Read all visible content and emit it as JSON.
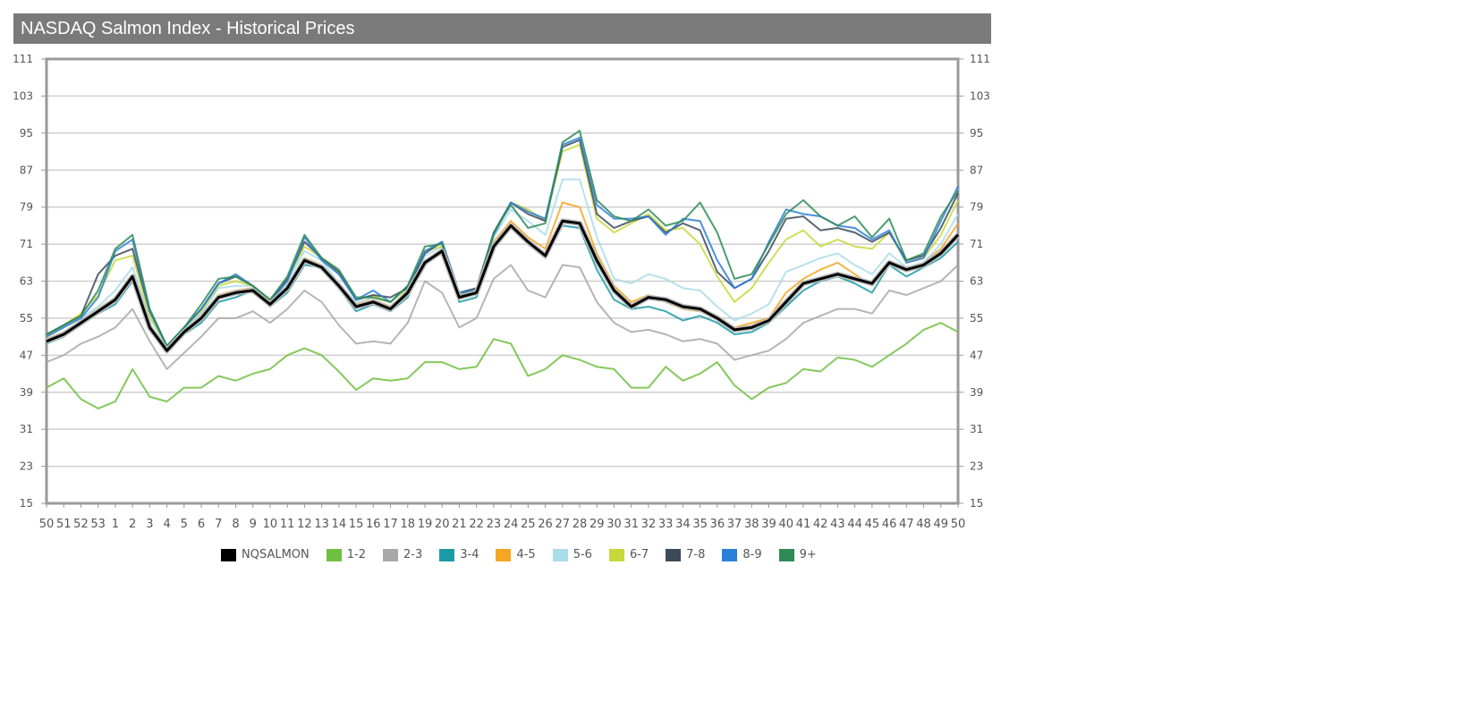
{
  "title": "NASDAQ Salmon Index - Historical Prices",
  "chart_data": {
    "type": "line",
    "title": "NASDAQ Salmon Index - Historical Prices",
    "xlabel": "",
    "ylabel": "",
    "categories": [
      "50",
      "51",
      "52",
      "53",
      "1",
      "2",
      "3",
      "4",
      "5",
      "6",
      "7",
      "8",
      "9",
      "10",
      "11",
      "12",
      "13",
      "14",
      "15",
      "16",
      "17",
      "18",
      "19",
      "20",
      "21",
      "22",
      "23",
      "24",
      "25",
      "26",
      "27",
      "28",
      "29",
      "30",
      "31",
      "32",
      "33",
      "34",
      "35",
      "36",
      "37",
      "38",
      "39",
      "40",
      "41",
      "42",
      "43",
      "44",
      "45",
      "46",
      "47",
      "48",
      "49",
      "50"
    ],
    "yticks": [
      15,
      23,
      31,
      39,
      47,
      55,
      63,
      71,
      79,
      87,
      95,
      103,
      111
    ],
    "ylim": [
      15,
      111
    ],
    "grid": true,
    "legend_position": "bottom",
    "series": [
      {
        "name": "NQSALMON",
        "color": "#000000",
        "values": [
          50,
          51.5,
          54,
          56.5,
          59,
          64,
          53,
          48,
          52,
          55,
          59.5,
          60.5,
          61,
          58,
          61.5,
          67.5,
          66,
          62,
          57.5,
          58.5,
          57,
          60.5,
          67,
          69.5,
          59.5,
          60.5,
          70.5,
          75,
          71.5,
          68.5,
          76,
          75.5,
          67.5,
          61,
          57.5,
          59.5,
          59,
          57.5,
          57,
          55,
          52.5,
          53,
          54.5,
          58.5,
          62.5,
          63.5,
          64.5,
          63.5,
          62.5,
          67,
          65.5,
          66.5,
          69,
          73
        ]
      },
      {
        "name": "1-2",
        "color": "#6fc040",
        "values": [
          40,
          42,
          37.5,
          35.5,
          37,
          44,
          38,
          37,
          40,
          40,
          42.5,
          41.5,
          43,
          44,
          47,
          48.5,
          47,
          43.5,
          39.5,
          42,
          41.5,
          42,
          45.5,
          45.5,
          44,
          44.5,
          50.5,
          49.5,
          42.5,
          44,
          47,
          46,
          44.5,
          44,
          40,
          40,
          44.5,
          41.5,
          43,
          45.5,
          40.5,
          37.5,
          40,
          41,
          44,
          43.5,
          46.5,
          46,
          44.5,
          47,
          49.5,
          52.5,
          54,
          52
        ]
      },
      {
        "name": "2-3",
        "color": "#a8a8a8",
        "values": [
          45.5,
          47,
          49.5,
          51,
          53,
          57,
          50,
          44,
          47.5,
          51,
          55,
          55,
          56.5,
          54,
          57,
          61,
          58.5,
          53.5,
          49.5,
          50,
          49.5,
          54,
          63,
          60.5,
          53,
          55,
          63.5,
          66.5,
          61,
          59.5,
          66.5,
          66,
          58.5,
          54,
          52,
          52.5,
          51.5,
          50,
          50.5,
          49.5,
          46,
          47,
          48,
          50.5,
          54,
          55.5,
          57,
          57,
          56,
          61,
          60,
          61.5,
          63,
          66.5
        ]
      },
      {
        "name": "3-4",
        "color": "#1a9aa6",
        "values": [
          49.5,
          51,
          53.5,
          56,
          58,
          63,
          52.5,
          47.5,
          51.5,
          54,
          58.5,
          59.5,
          61,
          57.5,
          60.5,
          66.5,
          66,
          61.5,
          56.5,
          58,
          56.5,
          59.5,
          67,
          70,
          58.5,
          59.5,
          70,
          74.5,
          71,
          68,
          75,
          74.5,
          65.5,
          59,
          57,
          57.5,
          56.5,
          54.5,
          55.5,
          54,
          51.5,
          52,
          54,
          57.5,
          61,
          63,
          64,
          62.5,
          60.5,
          66.5,
          64,
          66,
          68,
          71.5
        ]
      },
      {
        "name": "4-5",
        "color": "#f5a623",
        "values": [
          50.5,
          52,
          54.5,
          57,
          59.5,
          63.5,
          53.5,
          48.5,
          52,
          55.5,
          60,
          61,
          61.5,
          58.5,
          62,
          68,
          66.5,
          62,
          58,
          59,
          57.5,
          60.5,
          67.5,
          69.5,
          60,
          60.5,
          71.5,
          76,
          72.5,
          70,
          80,
          79,
          69,
          62,
          58.5,
          60,
          58.5,
          57,
          56.5,
          55.5,
          53,
          54,
          55,
          60.5,
          63.5,
          65.5,
          67,
          64.5,
          62,
          67,
          65.5,
          67,
          70,
          75.5
        ]
      },
      {
        "name": "5-6",
        "color": "#aadcea",
        "values": [
          51,
          53,
          55,
          57.5,
          61,
          66,
          55,
          49,
          52.5,
          56,
          61.5,
          62,
          62,
          59,
          63,
          69.5,
          67.5,
          62.5,
          58.5,
          59.5,
          58.5,
          61.5,
          68.5,
          70.5,
          60.5,
          61.5,
          72.5,
          78.5,
          76,
          73,
          85,
          85,
          72.5,
          63.5,
          62.5,
          64.5,
          63.5,
          61.5,
          61,
          57.5,
          54.5,
          56,
          58,
          65,
          66.5,
          68,
          69,
          66.5,
          64.5,
          69,
          66,
          67,
          71,
          77.5
        ]
      },
      {
        "name": "6-7",
        "color": "#c8d83a",
        "values": [
          51,
          53.5,
          56,
          60,
          67.5,
          68.5,
          55.5,
          49,
          53,
          56.5,
          62,
          63,
          62,
          59,
          63.5,
          70.5,
          68,
          64.5,
          59,
          60,
          58.5,
          61.5,
          69.5,
          70.5,
          60,
          61,
          73,
          80,
          78.5,
          76,
          91,
          92.5,
          76.5,
          73.5,
          75.5,
          77.5,
          74,
          74.5,
          71,
          64,
          58.5,
          61.5,
          67,
          72,
          74,
          70.5,
          72,
          70.5,
          70,
          73.5,
          67,
          68,
          73,
          80.5
        ]
      },
      {
        "name": "7-8",
        "color": "#3c4a5a",
        "values": [
          51.5,
          53.5,
          55.5,
          64.5,
          68.5,
          70,
          56.5,
          49,
          53,
          57,
          62.5,
          64,
          62,
          58.5,
          63.5,
          71.5,
          68,
          65,
          59,
          60,
          59.5,
          61.5,
          69,
          71.5,
          60.5,
          61.5,
          73.5,
          80,
          77.5,
          76,
          92,
          93.5,
          77.5,
          74.5,
          76,
          77,
          73.5,
          75.5,
          74,
          65,
          61.5,
          63.5,
          69.5,
          76.5,
          77,
          74,
          74.5,
          73.5,
          71.5,
          73.5,
          67.5,
          68.5,
          74.5,
          82
        ]
      },
      {
        "name": "8-9",
        "color": "#2a7fd9",
        "values": [
          51,
          53,
          55,
          59.5,
          69.5,
          72,
          56.5,
          49,
          53,
          57,
          62.5,
          64.5,
          62,
          58.5,
          63,
          72.5,
          67.5,
          64.5,
          59,
          61,
          58.5,
          62,
          69.5,
          71.5,
          60.5,
          61,
          73,
          80,
          78,
          76.5,
          92.5,
          94,
          79.5,
          76.5,
          76.5,
          77,
          73,
          76.5,
          76,
          67.5,
          61.5,
          63.5,
          71.5,
          78.5,
          77.5,
          77,
          75,
          74.5,
          72,
          74,
          67,
          68,
          76,
          83.5
        ]
      },
      {
        "name": "9+",
        "color": "#2e8b57",
        "values": [
          51.5,
          53.5,
          55.5,
          61,
          70,
          73,
          57,
          49,
          53,
          58,
          63.5,
          64,
          62,
          59,
          64,
          73,
          68,
          65.5,
          59.5,
          59.5,
          58.5,
          62,
          70.5,
          71,
          60,
          61,
          73.5,
          79.5,
          74.5,
          75.5,
          93,
          95.5,
          80.5,
          77,
          76,
          78.5,
          75,
          76,
          80,
          73.5,
          63.5,
          64.5,
          71,
          77.5,
          80.5,
          77,
          75,
          77,
          72.5,
          76.5,
          67.5,
          69,
          77,
          82.5
        ]
      }
    ]
  }
}
